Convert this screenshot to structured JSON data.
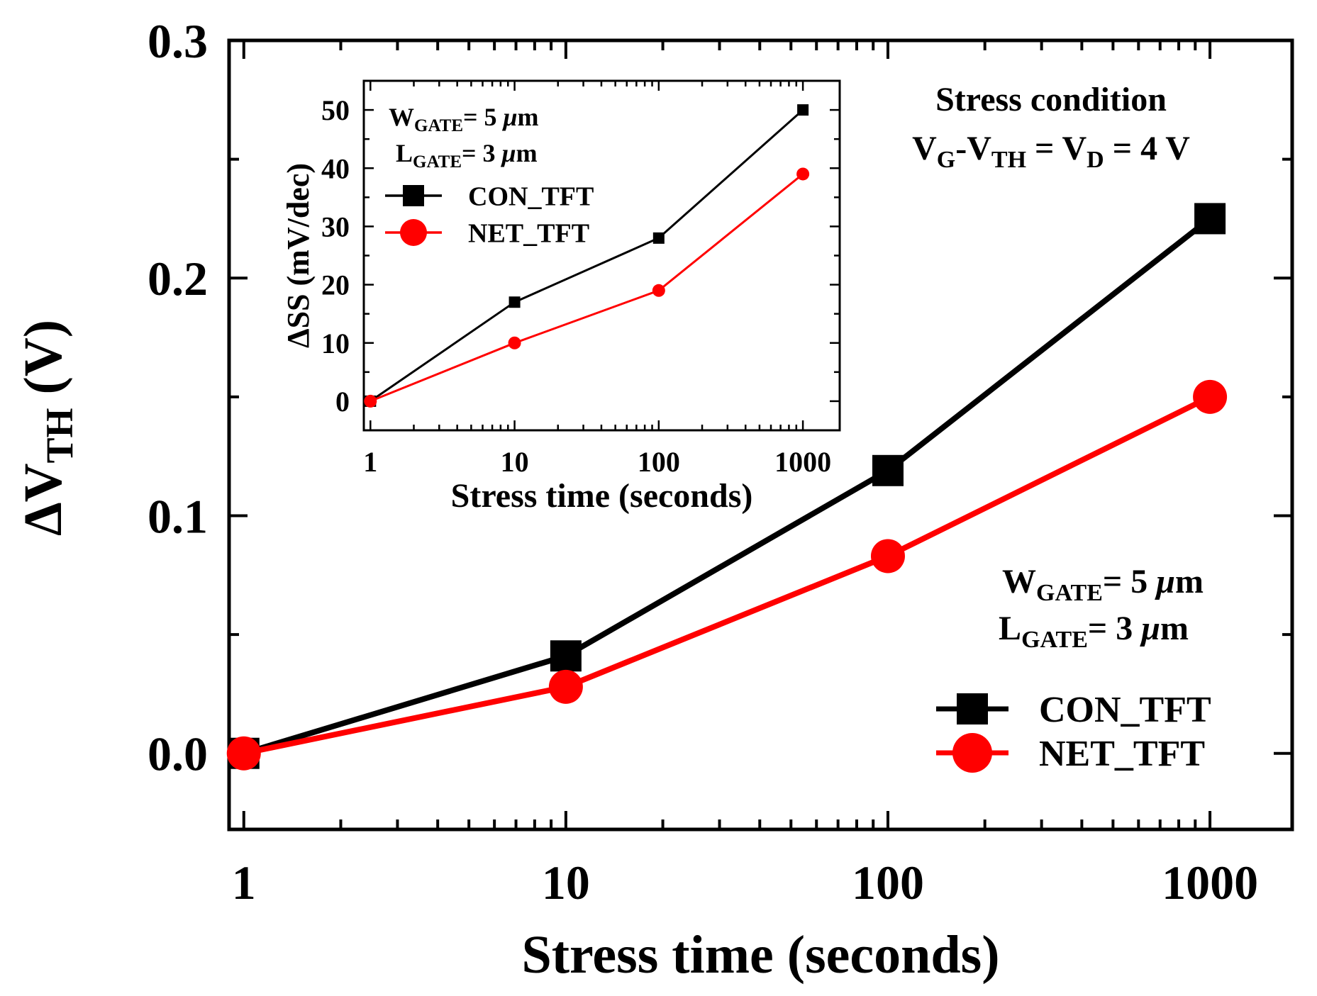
{
  "chart_data": [
    {
      "type": "line",
      "title": "",
      "xlabel": "Stress time (seconds)",
      "ylabel": {
        "delta": "Δ",
        "v": "V",
        "sub": "TH",
        "unit": " (V)"
      },
      "xscale": "log",
      "xlim": [
        0.9,
        1800
      ],
      "ylim": [
        -0.032,
        0.3
      ],
      "xticks": [
        1,
        10,
        100,
        1000
      ],
      "xtick_labels": [
        "1",
        "10",
        "100",
        "1000"
      ],
      "yticks": [
        0.0,
        0.1,
        0.2,
        0.3
      ],
      "ytick_labels": [
        "0.0",
        "0.1",
        "0.2",
        "0.3"
      ],
      "x": [
        1,
        10,
        100,
        1000
      ],
      "series": [
        {
          "name": "CON_TFT",
          "marker": "square",
          "color": "#000000",
          "values": [
            0.0,
            0.041,
            0.119,
            0.225
          ]
        },
        {
          "name": "NET_TFT",
          "marker": "circle",
          "color": "#ff0000",
          "values": [
            0.0,
            0.028,
            0.083,
            0.15
          ]
        }
      ],
      "annotations": {
        "stress_title": "Stress condition",
        "stress_eq": {
          "v1": "V",
          "s1": "G",
          "m1": "-V",
          "s2": "TH",
          "m2": " = V",
          "s3": "D",
          "m3": " = 4 V"
        },
        "gate_w": {
          "main": "W",
          "sub": "GATE",
          "val": "= 5 ",
          "mu": "μ",
          "unit": "m"
        },
        "gate_l": {
          "main": "L",
          "sub": "GATE",
          "val": "= 3 ",
          "mu": "μ",
          "unit": "m"
        }
      },
      "legend_position": "bottom-right"
    },
    {
      "type": "line",
      "title": "",
      "xlabel": "Stress time (seconds)",
      "ylabel": "ΔSS (mV/dec)",
      "xscale": "log",
      "xlim": [
        0.9,
        1800
      ],
      "ylim": [
        -5,
        55
      ],
      "xticks": [
        1,
        10,
        100,
        1000
      ],
      "xtick_labels": [
        "1",
        "10",
        "100",
        "1000"
      ],
      "yticks": [
        0,
        10,
        20,
        30,
        40,
        50
      ],
      "ytick_labels": [
        "0",
        "10",
        "20",
        "30",
        "40",
        "50"
      ],
      "x": [
        1,
        10,
        100,
        1000
      ],
      "series": [
        {
          "name": "CON_TFT",
          "marker": "square",
          "color": "#000000",
          "values": [
            0,
            17,
            28,
            50
          ]
        },
        {
          "name": "NET_TFT",
          "marker": "circle",
          "color": "#ff0000",
          "values": [
            0,
            10,
            19,
            39
          ]
        }
      ],
      "annotations": {
        "gate_w": {
          "main": "W",
          "sub": "GATE",
          "val": "= 5 ",
          "mu": "μ",
          "unit": "m"
        },
        "gate_l": {
          "main": "L",
          "sub": "GATE",
          "val": "= 3 ",
          "mu": "μ",
          "unit": "m"
        }
      },
      "legend_position": "top-left"
    }
  ]
}
